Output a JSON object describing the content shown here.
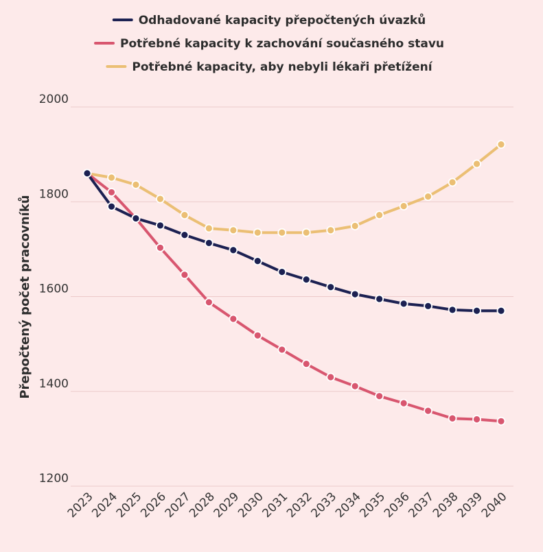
{
  "chart_data": {
    "type": "line",
    "x": [
      "2023",
      "2024",
      "2025",
      "2026",
      "2027",
      "2028",
      "2029",
      "2030",
      "2031",
      "2032",
      "2033",
      "2034",
      "2035",
      "2036",
      "2037",
      "2038",
      "2039",
      "2040"
    ],
    "ylabel": "Přepočtený počet pracovníků",
    "xlabel": "",
    "ylim": [
      1200,
      2000
    ],
    "yticks": [
      "1200",
      "1400",
      "1600",
      "1800",
      "2000"
    ],
    "grid": "horizontal",
    "legend_position": "top",
    "series": [
      {
        "name": "Odhadované kapacity přepočtených úvazků",
        "color": "#1c2152",
        "values": [
          1860,
          1790,
          1765,
          1750,
          1730,
          1713,
          1698,
          1675,
          1652,
          1636,
          1620,
          1605,
          1595,
          1585,
          1580,
          1572,
          1570,
          1570
        ]
      },
      {
        "name": "Potřebné kapacity k zachování současného stavu",
        "color": "#d8566f",
        "values": [
          1860,
          1820,
          1765,
          1703,
          1646,
          1588,
          1553,
          1518,
          1488,
          1458,
          1430,
          1411,
          1390,
          1375,
          1359,
          1343,
          1341,
          1337
        ]
      },
      {
        "name": "Potřebné kapacity, aby nebyli lékaři přetížení",
        "color": "#ebbf74",
        "values": [
          1860,
          1851,
          1836,
          1806,
          1772,
          1744,
          1740,
          1735,
          1735,
          1735,
          1740,
          1749,
          1772,
          1791,
          1811,
          1841,
          1880,
          1921
        ]
      }
    ]
  }
}
